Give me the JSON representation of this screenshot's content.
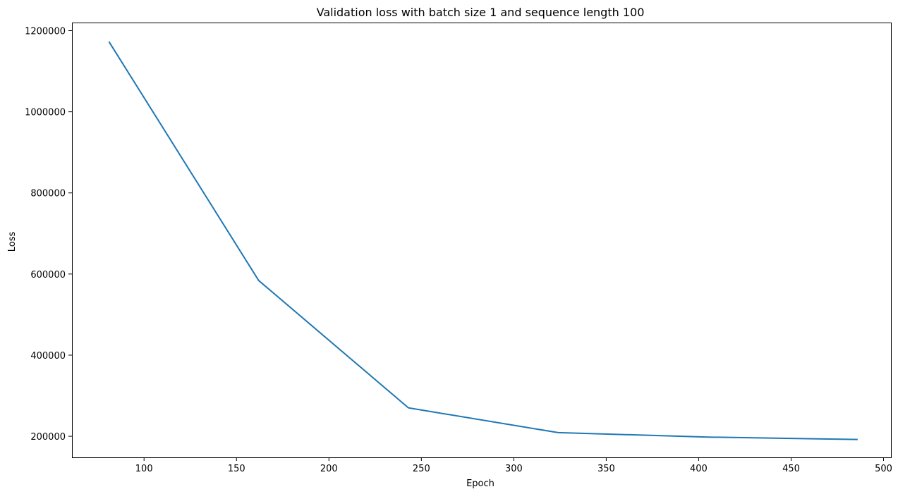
{
  "chart_data": {
    "type": "line",
    "title": "Validation loss with batch size 1 and sequence length 100",
    "xlabel": "Epoch",
    "ylabel": "Loss",
    "x": [
      81,
      162,
      243,
      324,
      405,
      486
    ],
    "series": [
      {
        "values": [
          1173000,
          584000,
          270000,
          209000,
          198000,
          192000
        ],
        "color": "#1f77b4"
      }
    ],
    "xlim": [
      61,
      504
    ],
    "ylim": [
      148000,
      1220000
    ],
    "xticks": [
      100,
      150,
      200,
      250,
      300,
      350,
      400,
      450,
      500
    ],
    "xtick_labels": [
      "100",
      "150",
      "200",
      "250",
      "300",
      "350",
      "400",
      "450",
      "500"
    ],
    "yticks": [
      200000,
      400000,
      600000,
      800000,
      1000000,
      1200000
    ],
    "ytick_labels": [
      "200000",
      "400000",
      "600000",
      "800000",
      "1000000",
      "1200000"
    ],
    "grid": false,
    "legend": "none"
  }
}
